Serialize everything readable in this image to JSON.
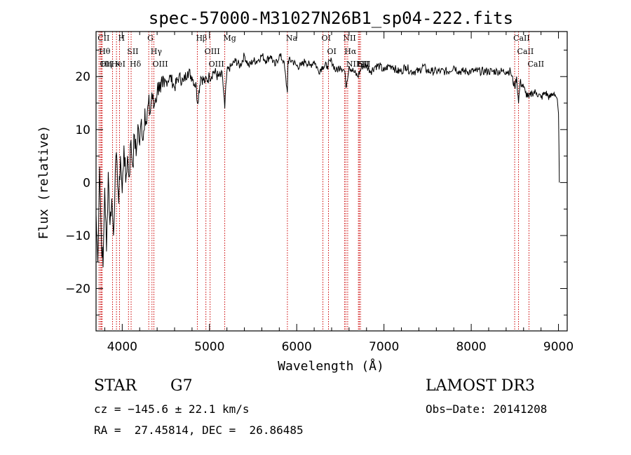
{
  "chart_data": {
    "type": "line",
    "title": "spec-57000-M31027N26B1_sp04-222.fits",
    "xlabel": "Wavelength (Å)",
    "ylabel": "Flux (relative)",
    "xlim": [
      3700,
      9100
    ],
    "ylim": [
      -28,
      28.5
    ],
    "x_ticks": [
      4000,
      5000,
      6000,
      7000,
      8000,
      9000
    ],
    "x_tick_labels": [
      "4000",
      "5000",
      "6000",
      "7000",
      "8000",
      "9000"
    ],
    "y_ticks": [
      -20,
      -10,
      0,
      10,
      20
    ],
    "y_tick_labels": [
      "−20",
      "−10",
      "0",
      "10",
      "20"
    ],
    "series": [
      {
        "name": "flux",
        "x": [
          3700,
          3720,
          3740,
          3760,
          3780,
          3800,
          3820,
          3840,
          3860,
          3880,
          3900,
          3920,
          3940,
          3960,
          3980,
          4000,
          4020,
          4040,
          4060,
          4080,
          4100,
          4120,
          4140,
          4160,
          4180,
          4200,
          4220,
          4240,
          4260,
          4280,
          4300,
          4320,
          4340,
          4360,
          4380,
          4400,
          4420,
          4440,
          4460,
          4480,
          4500,
          4550,
          4600,
          4650,
          4700,
          4750,
          4800,
          4850,
          4861,
          4900,
          4950,
          5000,
          5050,
          5100,
          5150,
          5175,
          5200,
          5250,
          5300,
          5350,
          5400,
          5450,
          5500,
          5550,
          5600,
          5650,
          5700,
          5750,
          5800,
          5850,
          5893,
          5900,
          5950,
          6000,
          6050,
          6100,
          6150,
          6200,
          6250,
          6300,
          6350,
          6400,
          6450,
          6500,
          6550,
          6563,
          6600,
          6650,
          6700,
          6750,
          6800,
          6850,
          6900,
          6950,
          7000,
          7050,
          7100,
          7150,
          7200,
          7250,
          7300,
          7350,
          7400,
          7450,
          7500,
          7550,
          7600,
          7650,
          7700,
          7750,
          7800,
          7850,
          7900,
          7950,
          8000,
          8050,
          8100,
          8150,
          8200,
          8250,
          8300,
          8350,
          8400,
          8450,
          8498,
          8520,
          8542,
          8560,
          8600,
          8620,
          8662,
          8700,
          8750,
          8800,
          8850,
          8900,
          8950,
          8980,
          9000,
          9010
        ],
        "y": [
          -6,
          -15,
          3,
          -10,
          -16,
          -1,
          -13,
          2,
          -8,
          -3,
          -10,
          2,
          4,
          -4,
          5,
          -2,
          7,
          0,
          5,
          1,
          8,
          3,
          9,
          5,
          11,
          7,
          12,
          8,
          14,
          11,
          15,
          13,
          17,
          14,
          16,
          17,
          19,
          17,
          18,
          18,
          19,
          20,
          18,
          20,
          19,
          21,
          20,
          18,
          15,
          20,
          19,
          20,
          21,
          20,
          20,
          14,
          21,
          22,
          23,
          22,
          24,
          22,
          23,
          23,
          24,
          23,
          24,
          22,
          24,
          23,
          17,
          23,
          23,
          22,
          22,
          23,
          22,
          23,
          21,
          22,
          22,
          23,
          21,
          22,
          21,
          18,
          22,
          21,
          20,
          22,
          22,
          21,
          22,
          22,
          21,
          22,
          22,
          21,
          21,
          22,
          21,
          21,
          21,
          22,
          21,
          21,
          21,
          21,
          21,
          21,
          22,
          21,
          21,
          21,
          21,
          21,
          21,
          21,
          21,
          21,
          21,
          21,
          21,
          21,
          18,
          20,
          15,
          19,
          18,
          17,
          16,
          17,
          17,
          16,
          17,
          16,
          17,
          16,
          13,
          0
        ]
      }
    ],
    "lines": [
      {
        "w": 3750,
        "label": "Hθ"
      },
      {
        "w": 3734,
        "label": "CII"
      },
      {
        "w": 3760,
        "label": "OII"
      },
      {
        "w": 3771,
        "label": "Hη"
      },
      {
        "w": 3889,
        "label": "HeI"
      },
      {
        "w": 3934,
        "label": "K"
      },
      {
        "w": 3969,
        "label": "H"
      },
      {
        "w": 4072,
        "label": "SII"
      },
      {
        "w": 4102,
        "label": "Hδ"
      },
      {
        "w": 4304,
        "label": "G"
      },
      {
        "w": 4341,
        "label": "Hγ"
      },
      {
        "w": 4363,
        "label": "OIII"
      },
      {
        "w": 4861,
        "label": "Hβ"
      },
      {
        "w": 4959,
        "label": "OIII"
      },
      {
        "w": 5007,
        "label": "OIII"
      },
      {
        "w": 5175,
        "label": "Mg"
      },
      {
        "w": 5893,
        "label": "Na"
      },
      {
        "w": 6300,
        "label": "OI"
      },
      {
        "w": 6364,
        "label": "OI"
      },
      {
        "w": 6548,
        "label": "NII"
      },
      {
        "w": 6563,
        "label": "Hα"
      },
      {
        "w": 6584,
        "label": "NII"
      },
      {
        "w": 6707,
        "label": "Li"
      },
      {
        "w": 6717,
        "label": "SII"
      },
      {
        "w": 6731,
        "label": "SII"
      },
      {
        "w": 8498,
        "label": "CaII"
      },
      {
        "w": 8542,
        "label": "CaII"
      },
      {
        "w": 8662,
        "label": "CaII"
      }
    ]
  },
  "info": {
    "class_label": "STAR",
    "subclass": "G7",
    "survey": "LAMOST DR3",
    "cz": "cz = −145.6 ± 22.1 km/s",
    "obs_date": "Obs−Date: 20141208",
    "coords": "RA =  27.45814, DEC =  26.86485"
  },
  "colors": {
    "line": "#000000",
    "marker": "#cc0000",
    "axis": "#000000"
  }
}
